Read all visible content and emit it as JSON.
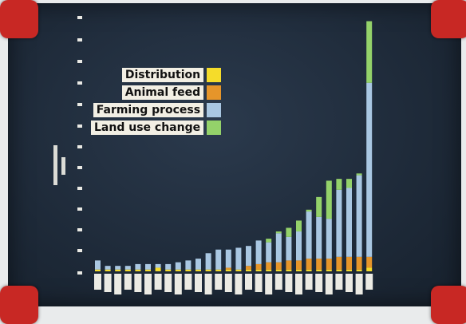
{
  "chart_data": {
    "type": "bar",
    "stacked": true,
    "series": [
      {
        "name": "Land use change",
        "color": "#94d26a"
      },
      {
        "name": "Farming process",
        "color": "#a9c7e2"
      },
      {
        "name": "Animal feed",
        "color": "#e6952a"
      },
      {
        "name": "Distribution",
        "color": "#f5dc2a"
      }
    ],
    "legend_order": [
      "Distribution",
      "Animal feed",
      "Farming process",
      "Land use change"
    ],
    "bars": [
      {
        "distribution": 0.1,
        "animal_feed": 0,
        "farming": 0.5,
        "land_use": 0
      },
      {
        "distribution": 0.1,
        "animal_feed": 0,
        "farming": 0.2,
        "land_use": 0
      },
      {
        "distribution": 0.1,
        "animal_feed": 0,
        "farming": 0.2,
        "land_use": 0
      },
      {
        "distribution": 0.1,
        "animal_feed": 0,
        "farming": 0.2,
        "land_use": 0
      },
      {
        "distribution": 0.1,
        "animal_feed": 0,
        "farming": 0.3,
        "land_use": 0
      },
      {
        "distribution": 0.1,
        "animal_feed": 0,
        "farming": 0.3,
        "land_use": 0
      },
      {
        "distribution": 0.2,
        "animal_feed": 0,
        "farming": 0.2,
        "land_use": 0
      },
      {
        "distribution": 0.1,
        "animal_feed": 0,
        "farming": 0.3,
        "land_use": 0
      },
      {
        "distribution": 0.1,
        "animal_feed": 0,
        "farming": 0.4,
        "land_use": 0
      },
      {
        "distribution": 0.1,
        "animal_feed": 0,
        "farming": 0.5,
        "land_use": 0
      },
      {
        "distribution": 0.1,
        "animal_feed": 0,
        "farming": 0.6,
        "land_use": 0
      },
      {
        "distribution": 0.1,
        "animal_feed": 0,
        "farming": 0.9,
        "land_use": 0
      },
      {
        "distribution": 0.1,
        "animal_feed": 0,
        "farming": 1.1,
        "land_use": 0
      },
      {
        "distribution": 0.1,
        "animal_feed": 0.1,
        "farming": 1.0,
        "land_use": 0
      },
      {
        "distribution": 0.1,
        "animal_feed": 0,
        "farming": 1.2,
        "land_use": 0
      },
      {
        "distribution": 0.1,
        "animal_feed": 0.2,
        "farming": 1.1,
        "land_use": 0
      },
      {
        "distribution": 0.1,
        "animal_feed": 0.3,
        "farming": 1.3,
        "land_use": 0
      },
      {
        "distribution": 0.1,
        "animal_feed": 0.4,
        "farming": 1.1,
        "land_use": 0.2
      },
      {
        "distribution": 0.1,
        "animal_feed": 0.4,
        "farming": 1.6,
        "land_use": 0.1
      },
      {
        "distribution": 0.1,
        "animal_feed": 0.5,
        "farming": 1.3,
        "land_use": 0.5
      },
      {
        "distribution": 0.1,
        "animal_feed": 0.5,
        "farming": 1.6,
        "land_use": 0.6
      },
      {
        "distribution": 0.1,
        "animal_feed": 0.6,
        "farming": 2.6,
        "land_use": 0.1
      },
      {
        "distribution": 0.1,
        "animal_feed": 0.6,
        "farming": 2.3,
        "land_use": 1.1
      },
      {
        "distribution": 0.1,
        "animal_feed": 0.6,
        "farming": 2.2,
        "land_use": 2.1
      },
      {
        "distribution": 0.1,
        "animal_feed": 0.7,
        "farming": 3.7,
        "land_use": 0.6
      },
      {
        "distribution": 0.1,
        "animal_feed": 0.7,
        "farming": 3.8,
        "land_use": 0.5
      },
      {
        "distribution": 0.1,
        "animal_feed": 0.7,
        "farming": 4.5,
        "land_use": 0.1
      },
      {
        "distribution": 0.2,
        "animal_feed": 0.6,
        "farming": 9.6,
        "land_use": 3.4
      }
    ],
    "ylim": [
      0,
      14
    ],
    "grid": false
  }
}
